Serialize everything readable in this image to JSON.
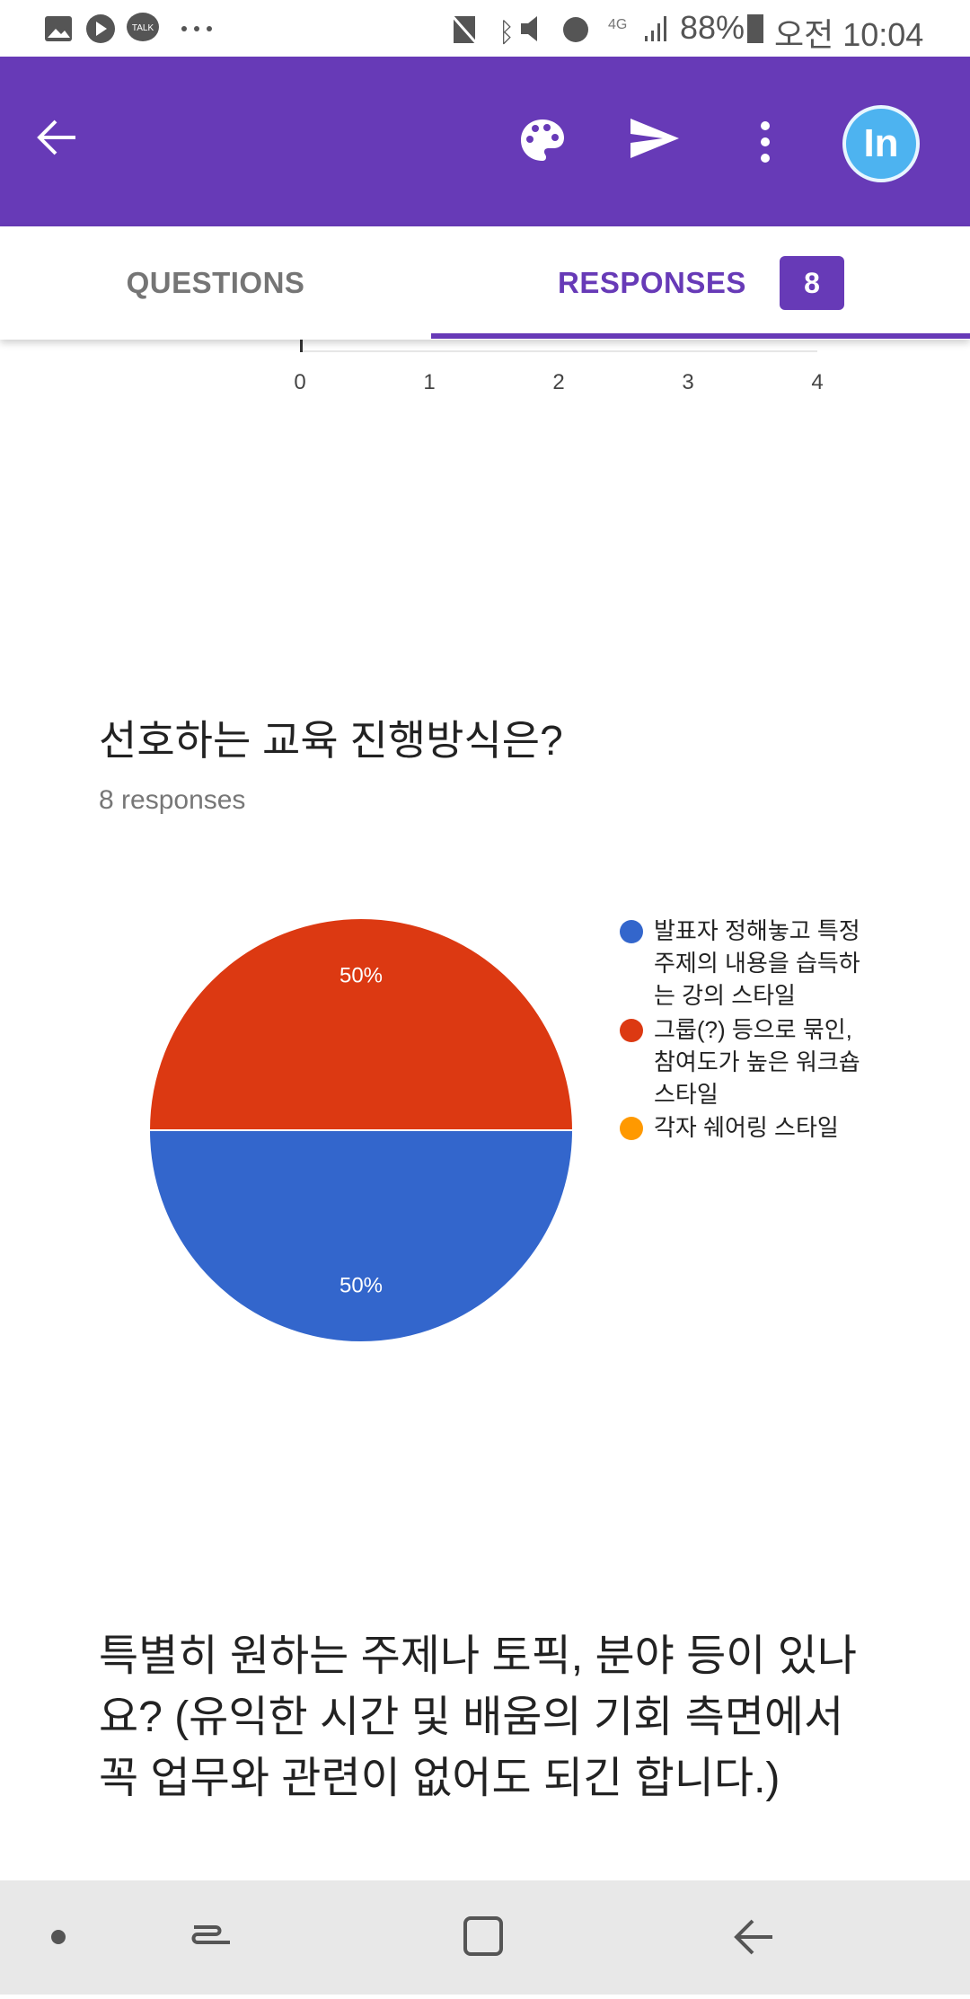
{
  "status_bar": {
    "battery": "88%",
    "time": "오전 10:04",
    "network": "4G",
    "notification_icons": [
      "gallery-icon",
      "play-icon",
      "kakaotalk-icon",
      "more-dots-icon"
    ],
    "system_icons": [
      "no-sim-icon",
      "bluetooth-icon",
      "mute-icon",
      "alarm-icon",
      "signal-icon",
      "battery-icon"
    ]
  },
  "app_bar": {
    "icons": [
      "back-arrow-icon",
      "palette-icon",
      "send-icon",
      "more-vert-icon",
      "avatar"
    ],
    "avatar_text": "In",
    "color": "#673ab7"
  },
  "tabs": [
    {
      "label": "QUESTIONS",
      "active": false
    },
    {
      "label": "RESPONSES",
      "active": true,
      "badge": "8"
    }
  ],
  "previous_chart_axis": {
    "ticks": [
      "0",
      "1",
      "2",
      "3",
      "4"
    ]
  },
  "question1": {
    "title": "선호하는 교육 진행방식은?",
    "responses": "8 responses"
  },
  "chart_data": {
    "type": "pie",
    "categories": [
      "발표자 정해놓고 특정 주제의 내용을 습득하는 강의 스타일",
      "그룹(?) 등으로 묶인, 참여도가 높은 워크숍 스타일",
      "각자 쉐어링 스타일"
    ],
    "values": [
      4,
      4,
      0
    ],
    "data_labels": [
      "50%",
      "50%",
      ""
    ],
    "colors": [
      "#3366cc",
      "#dc3912",
      "#ff9900"
    ],
    "legend_lines": [
      [
        "발표자 정해놓고 특정",
        "주제의 내용을 습득하",
        "는 강의 스타일"
      ],
      [
        "그룹(?) 등으로 묶인,",
        "참여도가 높은 워크숍",
        "스타일"
      ],
      [
        "각자 쉐어링 스타일"
      ]
    ],
    "legend": "right"
  },
  "question2": {
    "title": "특별히 원하는 주제나 토픽, 분야 등이 있나요? (유익한 시간 및 배움의 기회 측면에서 꼭 업무와 관련이 없어도 되긴 합니다.)"
  },
  "nav_bar": {
    "icons": [
      "dot-icon",
      "recent-apps-icon",
      "home-icon",
      "back-icon"
    ]
  }
}
